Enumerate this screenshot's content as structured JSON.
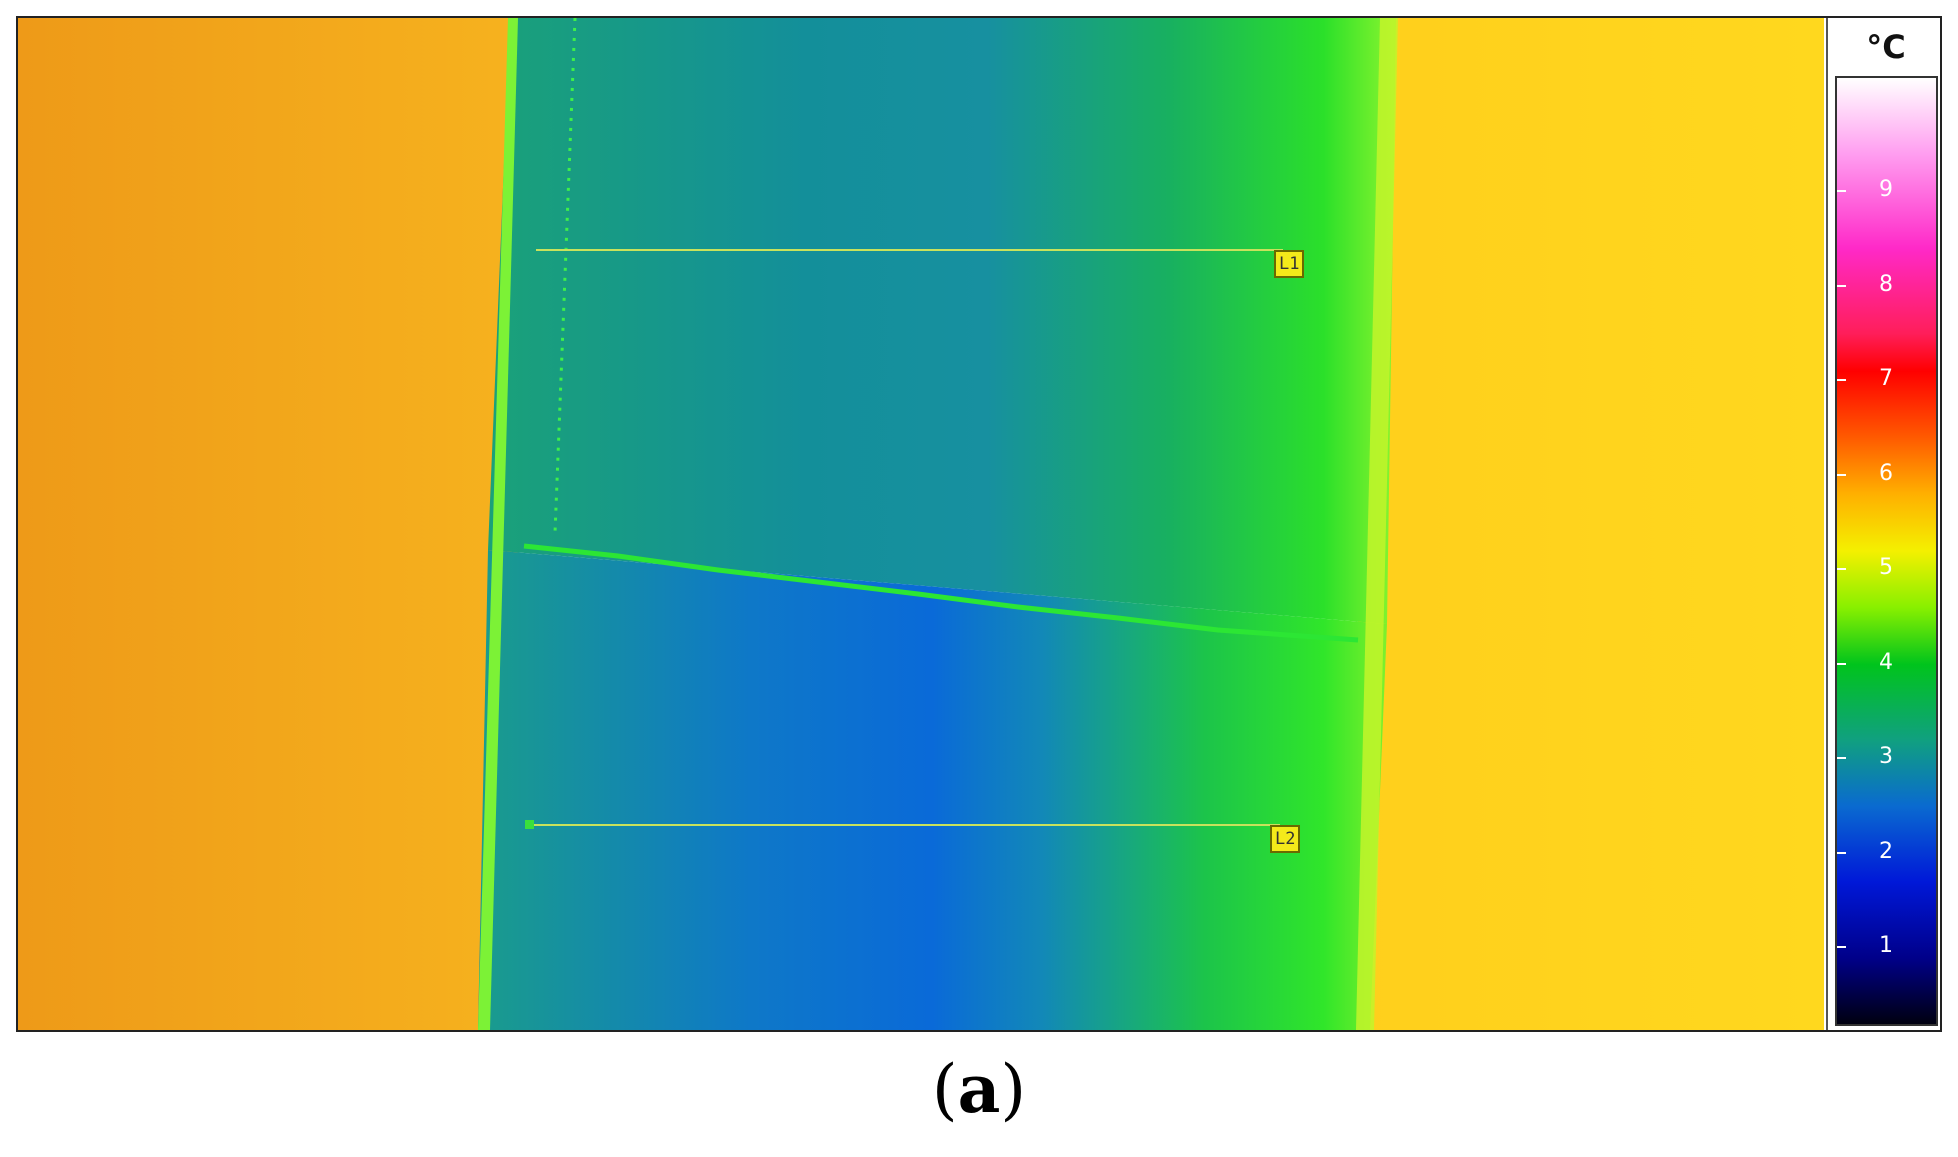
{
  "figure": {
    "caption_open": "(",
    "caption_letter": "a",
    "caption_close": ")"
  },
  "thermogram": {
    "unit": "°C",
    "scale_ticks": [
      "9",
      "8",
      "7",
      "6",
      "5",
      "4",
      "3",
      "2",
      "1"
    ],
    "markers": [
      {
        "label": "L1"
      },
      {
        "label": "L2"
      }
    ],
    "palette": {
      "outer_left": "#f1a31a",
      "outer_right": "#ffd21a",
      "cold_center": "#0a6fd8",
      "mid_teal": "#1d9f86",
      "warm_edge": "#9bff2a",
      "marker_line": "#c9e85a",
      "crack_line": "#28e832"
    }
  }
}
